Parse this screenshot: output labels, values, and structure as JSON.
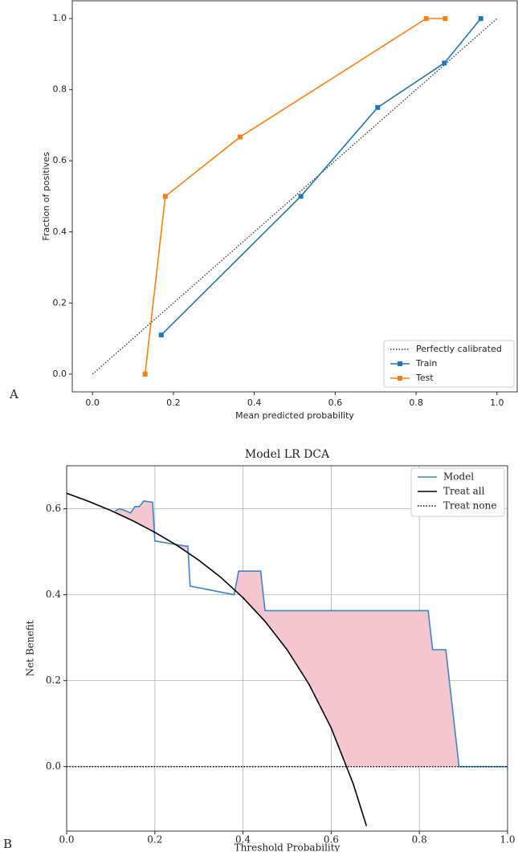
{
  "chart_data": [
    {
      "type": "line",
      "panel_label": "A",
      "xlabel": "Mean predicted probability",
      "ylabel": "Fraction of positives",
      "xlim": [
        -0.05,
        1.05
      ],
      "ylim": [
        -0.05,
        1.05
      ],
      "xticks": [
        {
          "value": 0,
          "label": "0.0"
        },
        {
          "value": 0.2,
          "label": "0.2"
        },
        {
          "value": 0.4,
          "label": "0.4"
        },
        {
          "value": 0.6,
          "label": "0.6"
        },
        {
          "value": 0.8,
          "label": "0.8"
        },
        {
          "value": 1,
          "label": "1.0"
        }
      ],
      "yticks": [
        {
          "value": 0,
          "label": "0.0"
        },
        {
          "value": 0.2,
          "label": "0.2"
        },
        {
          "value": 0.4,
          "label": "0.4"
        },
        {
          "value": 0.6,
          "label": "0.6"
        },
        {
          "value": 0.8,
          "label": "0.8"
        },
        {
          "value": 1,
          "label": "1.0"
        }
      ],
      "grid": false,
      "legend": "lower right",
      "series": [
        {
          "name": "Perfectly calibrated",
          "color": "#333333",
          "linestyle": "dotted",
          "x": [
            0,
            1
          ],
          "values": [
            0,
            1
          ]
        },
        {
          "name": "Train",
          "color": "#1f77b4",
          "marker": "square",
          "x": [
            0.17,
            0.515,
            0.705,
            0.87,
            0.96
          ],
          "values": [
            0.11,
            0.5,
            0.75,
            0.875,
            1.0
          ]
        },
        {
          "name": "Test",
          "color": "#ff7f0e",
          "marker": "square",
          "x": [
            0.13,
            0.18,
            0.365,
            0.825,
            0.872
          ],
          "values": [
            0.0,
            0.5,
            0.667,
            1.0,
            1.0
          ]
        }
      ]
    },
    {
      "type": "line",
      "panel_label": "B",
      "title": "Model LR DCA",
      "xlabel": "Threshold Probability",
      "ylabel": "Net Benefit",
      "xlim": [
        0,
        1
      ],
      "ylim": [
        -0.15,
        0.7
      ],
      "xticks": [
        {
          "value": 0,
          "label": "0.0"
        },
        {
          "value": 0.2,
          "label": "0.2"
        },
        {
          "value": 0.4,
          "label": "0.4"
        },
        {
          "value": 0.6,
          "label": "0.6"
        },
        {
          "value": 0.8,
          "label": "0.8"
        },
        {
          "value": 1,
          "label": "1.0"
        }
      ],
      "yticks": [
        {
          "value": 0,
          "label": "0.0"
        },
        {
          "value": 0.2,
          "label": "0.2"
        },
        {
          "value": 0.4,
          "label": "0.4"
        },
        {
          "value": 0.6,
          "label": "0.6"
        }
      ],
      "grid": true,
      "legend": "upper right",
      "fill_color": "#f4c6d0",
      "series": [
        {
          "name": "Model",
          "color": "#3a86c8",
          "x": [
            0.11,
            0.12,
            0.135,
            0.145,
            0.155,
            0.165,
            0.175,
            0.195,
            0.2,
            0.27,
            0.275,
            0.28,
            0.38,
            0.39,
            0.44,
            0.45,
            0.82,
            0.83,
            0.86,
            0.89,
            1.0
          ],
          "values": [
            0.595,
            0.6,
            0.595,
            0.59,
            0.605,
            0.605,
            0.618,
            0.615,
            0.525,
            0.513,
            0.513,
            0.42,
            0.4,
            0.455,
            0.455,
            0.363,
            0.363,
            0.272,
            0.272,
            0,
            0
          ]
        },
        {
          "name": "Treat all",
          "color": "#000000",
          "x": [
            0,
            0.05,
            0.1,
            0.15,
            0.2,
            0.25,
            0.3,
            0.35,
            0.4,
            0.45,
            0.5,
            0.55,
            0.6,
            0.65,
            0.68
          ],
          "values": [
            0.636,
            0.617,
            0.596,
            0.572,
            0.545,
            0.515,
            0.48,
            0.44,
            0.393,
            0.338,
            0.272,
            0.191,
            0.09,
            -0.04,
            -0.138
          ]
        },
        {
          "name": "Treat none",
          "color": "#000000",
          "linestyle": "dotted",
          "x": [
            0,
            1
          ],
          "values": [
            0,
            0
          ]
        }
      ]
    }
  ]
}
